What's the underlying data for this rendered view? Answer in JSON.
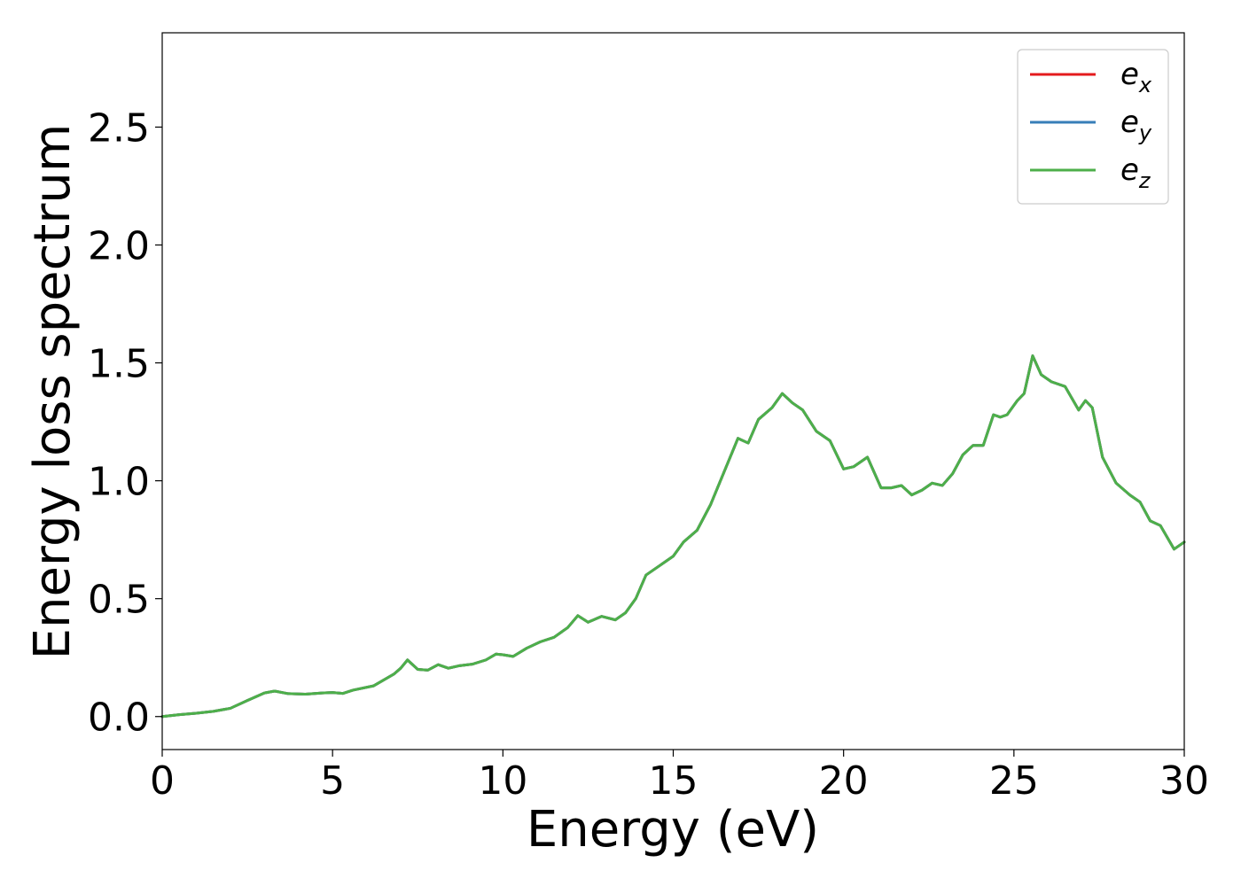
{
  "chart_data": {
    "type": "line",
    "title": "",
    "xlabel": "Energy (eV)",
    "ylabel": "Energy loss spectrum",
    "xlim": [
      0,
      30
    ],
    "ylim": [
      -0.14,
      2.9
    ],
    "xticks": [
      0,
      5,
      10,
      15,
      20,
      25,
      30
    ],
    "xtick_labels": [
      "0",
      "5",
      "10",
      "15",
      "20",
      "25",
      "30"
    ],
    "yticks": [
      0.0,
      0.5,
      1.0,
      1.5,
      2.0,
      2.5
    ],
    "ytick_labels": [
      "0.0",
      "0.5",
      "1.0",
      "1.5",
      "2.0",
      "2.5"
    ],
    "grid": false,
    "legend_position": "top-right",
    "x": [
      0,
      0.5,
      1.0,
      1.5,
      2.0,
      2.5,
      3.0,
      3.3,
      3.7,
      4.2,
      4.7,
      5.0,
      5.3,
      5.6,
      6.2,
      6.8,
      7.0,
      7.2,
      7.5,
      7.8,
      8.1,
      8.4,
      8.7,
      9.1,
      9.5,
      9.8,
      10.0,
      10.3,
      10.7,
      11.1,
      11.5,
      11.9,
      12.2,
      12.5,
      12.9,
      13.3,
      13.6,
      13.9,
      14.2,
      14.6,
      15.0,
      15.3,
      15.7,
      16.1,
      16.5,
      16.9,
      17.2,
      17.5,
      17.9,
      18.2,
      18.5,
      18.8,
      19.2,
      19.6,
      20.0,
      20.3,
      20.7,
      21.1,
      21.4,
      21.7,
      22.0,
      22.3,
      22.6,
      22.9,
      23.2,
      23.5,
      23.8,
      24.1,
      24.4,
      24.6,
      24.8,
      25.1,
      25.3,
      25.55,
      25.8,
      26.1,
      26.5,
      26.9,
      27.1,
      27.3,
      27.6,
      28.0,
      28.4,
      28.7,
      29.0,
      29.3,
      29.7,
      30.0
    ],
    "series": [
      {
        "name": "e_x",
        "label_base": "e",
        "label_sub": "x",
        "color": "#e41a1c",
        "values": [
          0.0,
          0.008,
          0.014,
          0.022,
          0.035,
          0.068,
          0.1,
          0.108,
          0.097,
          0.095,
          0.1,
          0.102,
          0.098,
          0.112,
          0.13,
          0.18,
          0.205,
          0.24,
          0.2,
          0.197,
          0.22,
          0.205,
          0.215,
          0.222,
          0.24,
          0.265,
          0.262,
          0.255,
          0.29,
          0.317,
          0.336,
          0.377,
          0.428,
          0.4,
          0.425,
          0.41,
          0.44,
          0.5,
          0.6,
          0.64,
          0.68,
          0.74,
          0.79,
          0.9,
          1.04,
          1.18,
          1.16,
          1.26,
          1.31,
          1.37,
          1.33,
          1.3,
          1.21,
          1.17,
          1.05,
          1.06,
          1.1,
          0.97,
          0.97,
          0.98,
          0.94,
          0.96,
          0.99,
          0.98,
          1.03,
          1.11,
          1.15,
          1.15,
          1.28,
          1.27,
          1.28,
          1.34,
          1.37,
          1.53,
          1.45,
          1.42,
          1.4,
          1.3,
          1.34,
          1.31,
          1.1,
          0.99,
          0.94,
          0.91,
          0.83,
          0.81,
          0.71,
          0.74
        ]
      },
      {
        "name": "e_y",
        "label_base": "e",
        "label_sub": "y",
        "color": "#377eb8",
        "values": [
          0.0,
          0.008,
          0.014,
          0.022,
          0.035,
          0.068,
          0.1,
          0.108,
          0.097,
          0.095,
          0.1,
          0.102,
          0.098,
          0.112,
          0.13,
          0.18,
          0.205,
          0.24,
          0.2,
          0.197,
          0.22,
          0.205,
          0.215,
          0.222,
          0.24,
          0.265,
          0.262,
          0.255,
          0.29,
          0.317,
          0.336,
          0.377,
          0.428,
          0.4,
          0.425,
          0.41,
          0.44,
          0.5,
          0.6,
          0.64,
          0.68,
          0.74,
          0.79,
          0.9,
          1.04,
          1.18,
          1.16,
          1.26,
          1.31,
          1.37,
          1.33,
          1.3,
          1.21,
          1.17,
          1.05,
          1.06,
          1.1,
          0.97,
          0.97,
          0.98,
          0.94,
          0.96,
          0.99,
          0.98,
          1.03,
          1.11,
          1.15,
          1.15,
          1.28,
          1.27,
          1.28,
          1.34,
          1.37,
          1.53,
          1.45,
          1.42,
          1.4,
          1.3,
          1.34,
          1.31,
          1.1,
          0.99,
          0.94,
          0.91,
          0.83,
          0.81,
          0.71,
          0.74
        ]
      },
      {
        "name": "e_z",
        "label_base": "e",
        "label_sub": "z",
        "color": "#4daf4a",
        "values": [
          0.0,
          0.008,
          0.014,
          0.022,
          0.035,
          0.068,
          0.1,
          0.108,
          0.097,
          0.095,
          0.1,
          0.102,
          0.098,
          0.112,
          0.13,
          0.18,
          0.205,
          0.24,
          0.2,
          0.197,
          0.22,
          0.205,
          0.215,
          0.222,
          0.24,
          0.265,
          0.262,
          0.255,
          0.29,
          0.317,
          0.336,
          0.377,
          0.428,
          0.4,
          0.425,
          0.41,
          0.44,
          0.5,
          0.6,
          0.64,
          0.68,
          0.74,
          0.79,
          0.9,
          1.04,
          1.18,
          1.16,
          1.26,
          1.31,
          1.37,
          1.33,
          1.3,
          1.21,
          1.17,
          1.05,
          1.06,
          1.1,
          0.97,
          0.97,
          0.98,
          0.94,
          0.96,
          0.99,
          0.98,
          1.03,
          1.11,
          1.15,
          1.15,
          1.28,
          1.27,
          1.28,
          1.34,
          1.37,
          1.53,
          1.45,
          1.42,
          1.4,
          1.3,
          1.34,
          1.31,
          1.1,
          0.99,
          0.94,
          0.91,
          0.83,
          0.81,
          0.71,
          0.74
        ]
      }
    ]
  }
}
